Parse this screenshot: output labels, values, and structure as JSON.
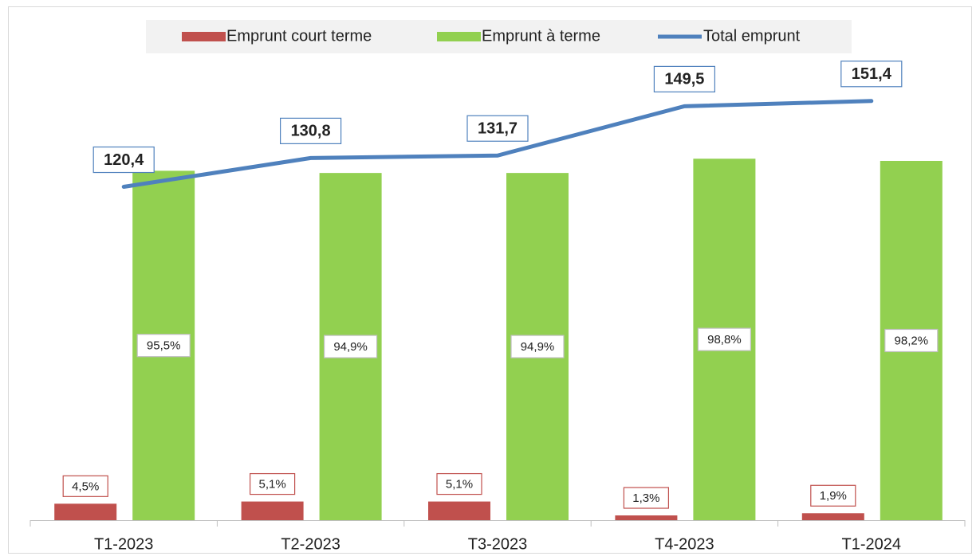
{
  "chart_data": {
    "type": "bar-line",
    "categories": [
      "T1-2023",
      "T2-2023",
      "T3-2023",
      "T4-2023",
      "T1-2024"
    ],
    "series": [
      {
        "name": "Emprunt court terme",
        "type": "bar",
        "color": "#c0504d",
        "values": [
          4.5,
          5.1,
          5.1,
          1.3,
          1.9
        ],
        "value_labels": [
          "4,5%",
          "5,1%",
          "5,1%",
          "1,3%",
          "1,9%"
        ]
      },
      {
        "name": "Emprunt à terme",
        "type": "bar",
        "color": "#92d050",
        "values": [
          95.5,
          94.9,
          94.9,
          98.8,
          98.2
        ],
        "value_labels": [
          "95,5%",
          "94,9%",
          "94,9%",
          "98,8%",
          "98,2%"
        ]
      },
      {
        "name": "Total emprunt",
        "type": "line",
        "axis": "y2",
        "color": "#4f81bd",
        "values": [
          120.4,
          130.8,
          131.7,
          149.5,
          151.4
        ],
        "value_labels": [
          "120,4",
          "130,8",
          "131,7",
          "149,5",
          "151,4"
        ]
      }
    ],
    "ylim": [
      0,
      140
    ],
    "y2lim": [
      0,
      185
    ],
    "legend": "top"
  }
}
